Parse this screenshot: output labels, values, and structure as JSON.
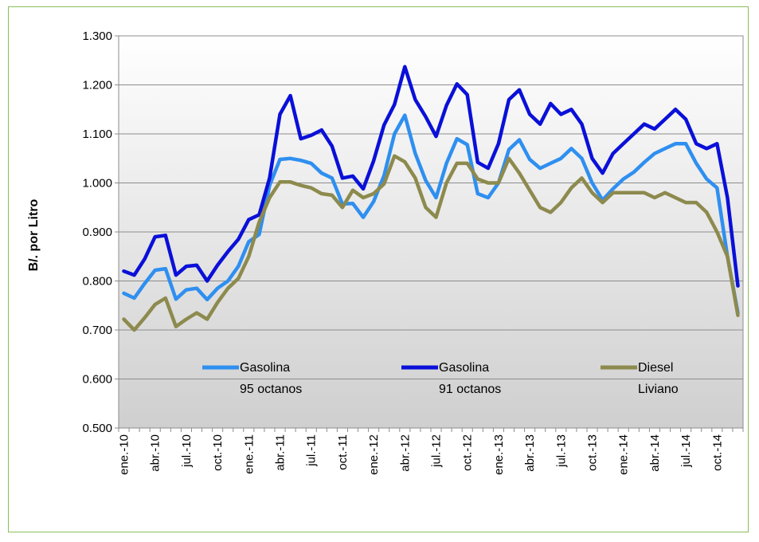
{
  "chart_data": {
    "type": "line",
    "title": "",
    "xlabel": "",
    "ylabel": "B/. por Litro",
    "ylim": [
      0.5,
      1.3
    ],
    "yticks": [
      "0.500",
      "0.600",
      "0.700",
      "0.800",
      "0.900",
      "1.000",
      "1.100",
      "1.200",
      "1.300"
    ],
    "grid": true,
    "legend": "inside-bottom",
    "x": [
      "ene.-10",
      "feb.-10",
      "mar.-10",
      "abr.-10",
      "may.-10",
      "jun.-10",
      "jul.-10",
      "ago.-10",
      "sep.-10",
      "oct.-10",
      "nov.-10",
      "dic.-10",
      "ene.-11",
      "feb.-11",
      "mar.-11",
      "abr.-11",
      "may.-11",
      "jun.-11",
      "jul.-11",
      "ago.-11",
      "sep.-11",
      "oct.-11",
      "nov.-11",
      "dic.-11",
      "ene.-12",
      "feb.-12",
      "mar.-12",
      "abr.-12",
      "may.-12",
      "jun.-12",
      "jul.-12",
      "ago.-12",
      "sep.-12",
      "oct.-12",
      "nov.-12",
      "dic.-12",
      "ene.-13",
      "feb.-13",
      "mar.-13",
      "abr.-13",
      "may.-13",
      "jun.-13",
      "jul.-13",
      "ago.-13",
      "sep.-13",
      "oct.-13",
      "nov.-13",
      "dic.-13",
      "ene.-14",
      "feb.-14",
      "mar.-14",
      "abr.-14",
      "may.-14",
      "jun.-14",
      "jul.-14",
      "ago.-14",
      "sep.-14",
      "oct.-14",
      "nov.-14",
      "dic.-14"
    ],
    "xtick_labels": [
      "ene.-10",
      "abr.-10",
      "jul.-10",
      "oct.-10",
      "ene.-11",
      "abr.-11",
      "jul.-11",
      "oct.-11",
      "ene.-12",
      "abr.-12",
      "jul.-12",
      "oct.-12",
      "ene.-13",
      "abr.-13",
      "jul.-13",
      "oct.-13",
      "ene.-14",
      "abr.-14",
      "jul.-14",
      "oct.-14"
    ],
    "series": [
      {
        "name": "Gasolina 95 octanos",
        "name_lines": [
          "Gasolina",
          "95 octanos"
        ],
        "color": "#2f8ff0",
        "values": [
          0.775,
          0.765,
          0.795,
          0.822,
          0.825,
          0.763,
          0.782,
          0.785,
          0.762,
          0.785,
          0.8,
          0.83,
          0.88,
          0.895,
          0.995,
          1.048,
          1.05,
          1.046,
          1.04,
          1.02,
          1.01,
          0.957,
          0.958,
          0.93,
          0.962,
          1.015,
          1.1,
          1.138,
          1.06,
          1.005,
          0.97,
          1.04,
          1.09,
          1.078,
          0.978,
          0.97,
          1.0,
          1.068,
          1.088,
          1.048,
          1.03,
          1.04,
          1.05,
          1.07,
          1.05,
          1.0,
          0.965,
          0.988,
          1.008,
          1.022,
          1.042,
          1.06,
          1.07,
          1.08,
          1.08,
          1.04,
          1.008,
          0.99,
          0.85,
          0.735
        ]
      },
      {
        "name": "Gasolina 91 octanos",
        "name_lines": [
          "Gasolina",
          "91 octanos"
        ],
        "color": "#0a10d8",
        "values": [
          0.82,
          0.812,
          0.845,
          0.89,
          0.893,
          0.812,
          0.83,
          0.832,
          0.8,
          0.832,
          0.86,
          0.885,
          0.925,
          0.935,
          1.01,
          1.14,
          1.178,
          1.09,
          1.097,
          1.108,
          1.075,
          1.01,
          1.014,
          0.988,
          1.045,
          1.118,
          1.16,
          1.237,
          1.17,
          1.135,
          1.095,
          1.158,
          1.202,
          1.18,
          1.042,
          1.03,
          1.08,
          1.17,
          1.19,
          1.14,
          1.12,
          1.162,
          1.14,
          1.15,
          1.12,
          1.05,
          1.02,
          1.06,
          1.08,
          1.1,
          1.12,
          1.11,
          1.13,
          1.15,
          1.13,
          1.08,
          1.07,
          1.08,
          0.97,
          0.79
        ]
      },
      {
        "name": "Diesel Liviano",
        "name_lines": [
          "Diesel",
          "Liviano"
        ],
        "color": "#8d8a4e",
        "values": [
          0.722,
          0.7,
          0.725,
          0.752,
          0.765,
          0.707,
          0.722,
          0.735,
          0.722,
          0.756,
          0.785,
          0.805,
          0.85,
          0.92,
          0.97,
          1.002,
          1.002,
          0.995,
          0.99,
          0.978,
          0.975,
          0.95,
          0.985,
          0.97,
          0.978,
          0.998,
          1.055,
          1.043,
          1.01,
          0.95,
          0.93,
          1.0,
          1.04,
          1.04,
          1.008,
          1.0,
          1.0,
          1.05,
          1.02,
          0.985,
          0.95,
          0.94,
          0.96,
          0.99,
          1.01,
          0.98,
          0.96,
          0.98,
          0.98,
          0.98,
          0.98,
          0.97,
          0.98,
          0.97,
          0.96,
          0.96,
          0.94,
          0.9,
          0.85,
          0.73
        ]
      }
    ]
  }
}
